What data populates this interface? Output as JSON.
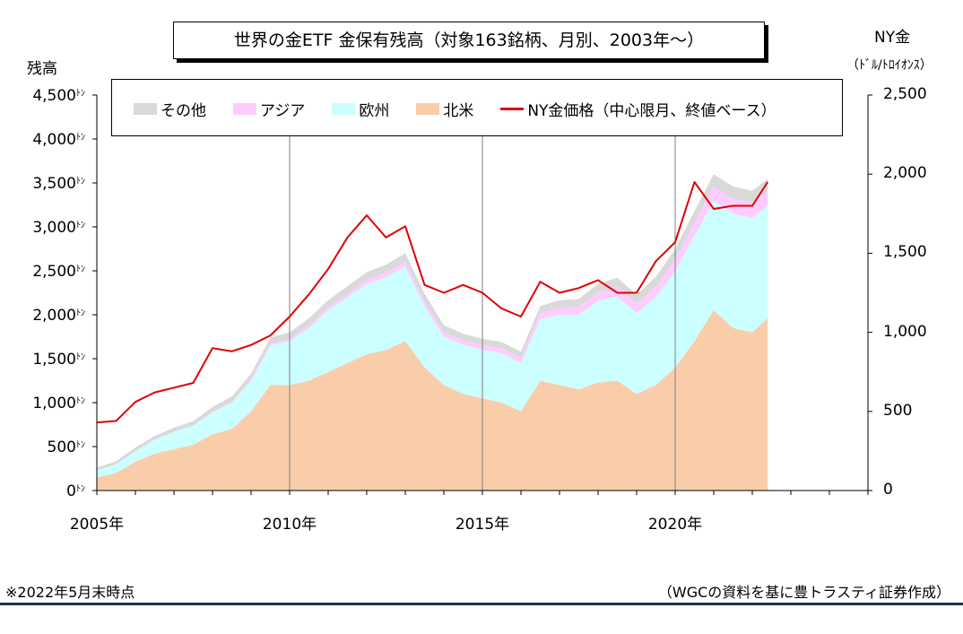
{
  "chart_data": {
    "type": "area",
    "title": "世界の金ETF 金保有残高（対象163銘柄、月別、2003年～）",
    "ylabel_left": "残高",
    "ylabel_right": "NY金",
    "ylabel_right_unit": "（ﾄﾞﾙ/ﾄﾛｲｵﾝｽ）",
    "ylim_left": [
      0,
      4500
    ],
    "ylim_right": [
      0,
      2500
    ],
    "xlim": [
      2005,
      2025
    ],
    "left_ticks": [
      {
        "label": "4,500",
        "value": 4500
      },
      {
        "label": "4,000",
        "value": 4000
      },
      {
        "label": "3,500",
        "value": 3500
      },
      {
        "label": "3,000",
        "value": 3000
      },
      {
        "label": "2,500",
        "value": 2500
      },
      {
        "label": "2,000",
        "value": 2000
      },
      {
        "label": "1,500",
        "value": 1500
      },
      {
        "label": "1,000",
        "value": 1000
      },
      {
        "label": "500",
        "value": 500
      },
      {
        "label": "0",
        "value": 0
      }
    ],
    "left_tick_unit": "ﾄﾝ",
    "right_ticks": [
      {
        "label": "2,500",
        "value": 2500
      },
      {
        "label": "2,000",
        "value": 2000
      },
      {
        "label": "1,500",
        "value": 1500
      },
      {
        "label": "1,000",
        "value": 1000
      },
      {
        "label": "500",
        "value": 500
      },
      {
        "label": "0",
        "value": 0
      }
    ],
    "x_ticks": [
      {
        "label": "2005年",
        "value": 2005
      },
      {
        "label": "2010年",
        "value": 2010
      },
      {
        "label": "2015年",
        "value": 2015
      },
      {
        "label": "2020年",
        "value": 2020
      }
    ],
    "vertical_lines": [
      2010,
      2015,
      2020
    ],
    "grid": false,
    "legend_position": "top",
    "x": [
      2005.0,
      2005.5,
      2006.0,
      2006.5,
      2007.0,
      2007.5,
      2008.0,
      2008.5,
      2009.0,
      2009.5,
      2010.0,
      2010.5,
      2011.0,
      2011.5,
      2012.0,
      2012.5,
      2013.0,
      2013.5,
      2014.0,
      2014.5,
      2015.0,
      2015.5,
      2016.0,
      2016.5,
      2017.0,
      2017.5,
      2018.0,
      2018.5,
      2019.0,
      2019.5,
      2020.0,
      2020.5,
      2021.0,
      2021.5,
      2022.0,
      2022.4
    ],
    "series": [
      {
        "name": "北米",
        "color": "#f9cdaa",
        "values": [
          150,
          200,
          330,
          420,
          470,
          520,
          640,
          700,
          900,
          1200,
          1200,
          1250,
          1350,
          1450,
          1550,
          1600,
          1700,
          1400,
          1200,
          1100,
          1050,
          1000,
          900,
          1250,
          1200,
          1150,
          1230,
          1250,
          1100,
          1200,
          1400,
          1700,
          2050,
          1850,
          1800,
          1960
        ]
      },
      {
        "name": "欧州",
        "color": "#ccffff",
        "values": [
          80,
          100,
          120,
          160,
          200,
          220,
          250,
          300,
          350,
          450,
          500,
          600,
          700,
          750,
          800,
          830,
          850,
          700,
          550,
          560,
          550,
          560,
          550,
          700,
          800,
          850,
          930,
          960,
          920,
          1000,
          1100,
          1200,
          1250,
          1300,
          1300,
          1280
        ]
      },
      {
        "name": "アジア",
        "color": "#ffccff",
        "values": [
          0,
          0,
          0,
          0,
          0,
          0,
          5,
          10,
          15,
          20,
          25,
          30,
          35,
          40,
          45,
          50,
          55,
          50,
          50,
          50,
          55,
          60,
          60,
          70,
          80,
          90,
          100,
          110,
          110,
          120,
          130,
          150,
          160,
          170,
          170,
          170
        ]
      },
      {
        "name": "その他",
        "color": "#d9d9d9",
        "values": [
          30,
          35,
          40,
          40,
          45,
          50,
          55,
          60,
          65,
          70,
          75,
          80,
          80,
          85,
          90,
          90,
          95,
          90,
          80,
          75,
          70,
          70,
          70,
          80,
          85,
          90,
          95,
          100,
          100,
          110,
          120,
          130,
          140,
          140,
          140,
          140
        ]
      }
    ],
    "price_series": {
      "name": "NY金価格（中心限月、終値ベース）",
      "color": "#e00000",
      "values": [
        430,
        440,
        560,
        620,
        650,
        680,
        900,
        880,
        920,
        980,
        1100,
        1240,
        1400,
        1600,
        1740,
        1600,
        1670,
        1300,
        1250,
        1300,
        1250,
        1150,
        1100,
        1320,
        1250,
        1280,
        1330,
        1250,
        1250,
        1450,
        1570,
        1950,
        1780,
        1800,
        1800,
        1950
      ]
    }
  },
  "legend": {
    "items": [
      {
        "label": "その他",
        "color": "#d9d9d9",
        "kind": "area"
      },
      {
        "label": "アジア",
        "color": "#ffccff",
        "kind": "area"
      },
      {
        "label": "欧州",
        "color": "#ccffff",
        "kind": "area"
      },
      {
        "label": "北米",
        "color": "#f9cdaa",
        "kind": "area"
      },
      {
        "label": "NY金価格（中心限月、終値ベース）",
        "color": "#e00000",
        "kind": "line"
      }
    ]
  },
  "footnote_left": "※2022年5月末時点",
  "footnote_right": "（WGCの資料を基に豊トラスティ証券作成）"
}
